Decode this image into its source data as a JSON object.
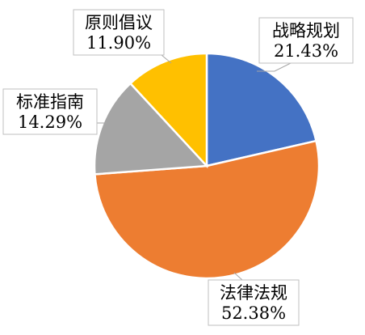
{
  "chart_data": {
    "type": "pie",
    "start_angle_deg": 0,
    "direction": "clockwise",
    "legend": "none",
    "slices": [
      {
        "name": "战略规划",
        "value": 21.43,
        "label": "21.43%",
        "color": "#4472c4"
      },
      {
        "name": "法律法规",
        "value": 52.38,
        "label": "52.38%",
        "color": "#ed7d31"
      },
      {
        "name": "标准指南",
        "value": 14.29,
        "label": "14.29%",
        "color": "#a5a5a5"
      },
      {
        "name": "原则倡议",
        "value": 11.9,
        "label": "11.90%",
        "color": "#ffc000"
      }
    ]
  }
}
